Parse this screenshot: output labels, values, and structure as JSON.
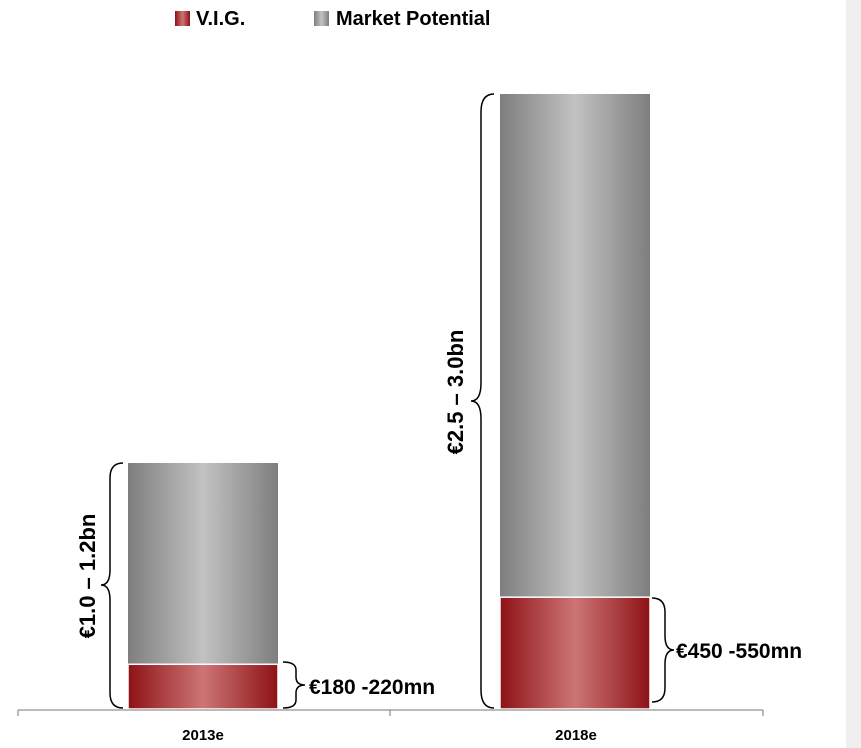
{
  "chart_data": {
    "type": "bar",
    "stacked": true,
    "categories": [
      "2013e",
      "2018e"
    ],
    "series": [
      {
        "name": "V.I.G.",
        "values": [
          200,
          500
        ],
        "color": "#a11e22"
      },
      {
        "name": "Market Potential",
        "values": [
          900,
          2250
        ],
        "color": "#9a9a9a"
      }
    ],
    "totals": [
      1100,
      2750
    ],
    "unit": "€mn",
    "ylim": [
      0,
      2750
    ],
    "legend": "top",
    "grid": false,
    "annotations": {
      "totals": [
        "€1.0 – 1.2bn",
        "€2.5 – 3.0bn"
      ],
      "vig": [
        "€180 -220mn",
        "€450 -550mn"
      ]
    },
    "title": "",
    "xlabel": "",
    "ylabel": ""
  },
  "theme": {
    "strip": "#efefef"
  }
}
